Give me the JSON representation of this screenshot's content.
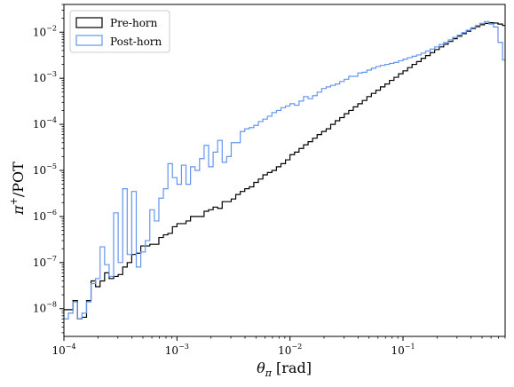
{
  "chart_data": {
    "type": "line",
    "drawstyle": "step-histogram",
    "xlabel": "θπ [rad]",
    "ylabel": "π+/POT",
    "xscale": "log",
    "yscale": "log",
    "xlim": [
      0.0001,
      0.8
    ],
    "ylim": [
      2.5e-09,
      0.04
    ],
    "x_ticks": [
      0.0001,
      0.001,
      0.01,
      0.1
    ],
    "x_tick_labels": [
      "10^-4",
      "10^-3",
      "10^-2",
      "10^-1"
    ],
    "y_ticks": [
      1e-08,
      1e-07,
      1e-06,
      1e-05,
      0.0001,
      0.001,
      0.01
    ],
    "y_tick_labels": [
      "10^-8",
      "10^-7",
      "10^-6",
      "10^-5",
      "10^-4",
      "10^-3",
      "10^-2"
    ],
    "legend_position": "top-left",
    "bins": {
      "log10_min": -4,
      "log10_width": 0.04,
      "count": 98
    },
    "series": [
      {
        "name": "Pre-horn",
        "color": "#000000",
        "values": [
          9.5e-09,
          9.5e-09,
          1.5e-08,
          6e-09,
          6.5e-09,
          1.5e-08,
          4e-08,
          3e-08,
          4e-08,
          6e-08,
          4.5e-08,
          5e-08,
          5.5e-08,
          8e-08,
          1e-07,
          1.5e-07,
          1.6e-07,
          2.3e-07,
          2.3e-07,
          2.5e-07,
          2.5e-07,
          3.5e-07,
          4e-07,
          4.3e-07,
          6e-07,
          7e-07,
          7e-07,
          8e-07,
          1e-06,
          1e-06,
          1e-06,
          1.3e-06,
          1.4e-06,
          1.6e-06,
          1.5e-06,
          2.1e-06,
          2.1e-06,
          2.4e-06,
          3e-06,
          3.5e-06,
          4e-06,
          4.4e-06,
          5.5e-06,
          6.5e-06,
          8e-06,
          9e-06,
          1e-05,
          1.2e-05,
          1.4e-05,
          1.7e-05,
          2.2e-05,
          2.5e-05,
          3e-05,
          3.6e-05,
          4.2e-05,
          5e-05,
          6e-05,
          7e-05,
          8e-05,
          0.0001,
          0.00012,
          0.00014,
          0.00017,
          0.0002,
          0.00024,
          0.00028,
          0.00033,
          0.0004,
          0.00047,
          0.00055,
          0.00065,
          0.00075,
          0.0009,
          0.00105,
          0.00125,
          0.00145,
          0.0017,
          0.002,
          0.0023,
          0.0027,
          0.0031,
          0.0036,
          0.0042,
          0.0048,
          0.0055,
          0.0063,
          0.0072,
          0.0082,
          0.0093,
          0.0105,
          0.012,
          0.0132,
          0.0145,
          0.0155,
          0.016,
          0.0158,
          0.015,
          0.014,
          0.013
        ]
      },
      {
        "name": "Post-horn",
        "color": "#6495ED",
        "values": [
          6e-09,
          8e-09,
          1.4e-08,
          6e-09,
          8e-09,
          1.4e-08,
          3.5e-08,
          4.5e-08,
          2.2e-07,
          9e-08,
          5e-08,
          1.2e-06,
          1e-07,
          4e-06,
          1.5e-07,
          3.5e-06,
          8e-08,
          1.7e-07,
          3e-07,
          1.4e-06,
          8e-07,
          2.5e-06,
          4e-06,
          1.4e-05,
          7e-06,
          5e-06,
          1.3e-05,
          5e-06,
          1.2e-05,
          1e-05,
          1.8e-05,
          3.5e-05,
          1.2e-05,
          2.5e-05,
          4.5e-05,
          1.5e-05,
          2e-05,
          4e-05,
          4e-05,
          7e-05,
          8e-05,
          8.5e-05,
          9.5e-05,
          0.000115,
          0.00013,
          0.00015,
          0.00018,
          0.0002,
          0.00023,
          0.00025,
          0.00028,
          0.00026,
          0.00032,
          0.0004,
          0.00036,
          0.00042,
          0.0005,
          0.0006,
          0.00065,
          0.0007,
          0.00075,
          0.00085,
          0.00095,
          0.0011,
          0.0011,
          0.0013,
          0.00135,
          0.0015,
          0.00165,
          0.0018,
          0.0019,
          0.002,
          0.0021,
          0.0022,
          0.0024,
          0.0026,
          0.0028,
          0.003,
          0.0032,
          0.0035,
          0.0039,
          0.0043,
          0.0048,
          0.0054,
          0.006,
          0.0068,
          0.0077,
          0.0086,
          0.0098,
          0.011,
          0.0125,
          0.014,
          0.0155,
          0.017,
          0.015,
          0.013,
          0.006,
          0.0025,
          0.001
        ]
      }
    ]
  }
}
